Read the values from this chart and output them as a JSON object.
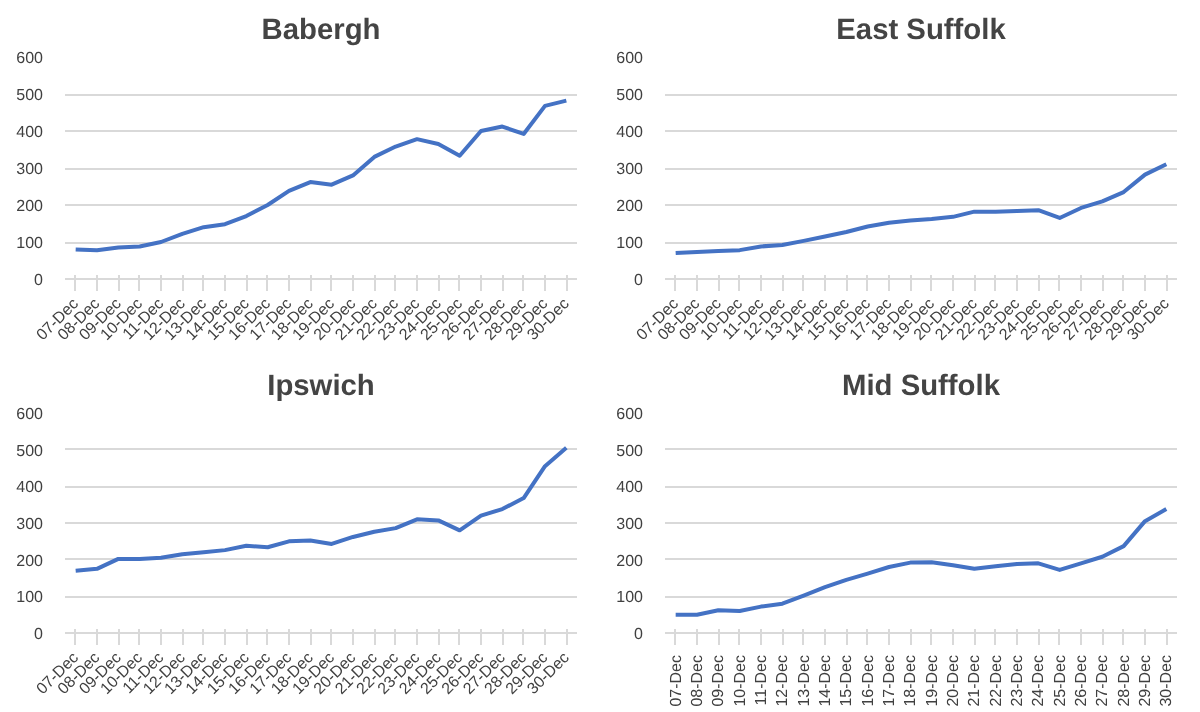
{
  "chart_data": [
    {
      "type": "line",
      "title": "Babergh",
      "categories": [
        "07-Dec",
        "08-Dec",
        "09-Dec",
        "10-Dec",
        "11-Dec",
        "12-Dec",
        "13-Dec",
        "14-Dec",
        "15-Dec",
        "16-Dec",
        "17-Dec",
        "18-Dec",
        "19-Dec",
        "20-Dec",
        "21-Dec",
        "22-Dec",
        "23-Dec",
        "24-Dec",
        "25-Dec",
        "26-Dec",
        "27-Dec",
        "28-Dec",
        "29-Dec",
        "30-Dec"
      ],
      "series": [
        {
          "color": "#4472c4",
          "values": [
            80,
            78,
            85,
            88,
            100,
            122,
            140,
            148,
            170,
            200,
            238,
            262,
            255,
            280,
            330,
            358,
            378,
            365,
            333,
            400,
            412,
            392,
            468,
            482
          ]
        }
      ],
      "ylim": [
        0,
        600
      ],
      "yticks": [
        0,
        100,
        200,
        300,
        400,
        500,
        600
      ],
      "grid": "y",
      "marker": "none",
      "line_style": "solid"
    },
    {
      "type": "line",
      "title": "East Suffolk",
      "categories": [
        "07-Dec",
        "08-Dec",
        "09-Dec",
        "10-Dec",
        "11-Dec",
        "12-Dec",
        "13-Dec",
        "14-Dec",
        "15-Dec",
        "16-Dec",
        "17-Dec",
        "18-Dec",
        "19-Dec",
        "20-Dec",
        "21-Dec",
        "22-Dec",
        "23-Dec",
        "24-Dec",
        "25-Dec",
        "26-Dec",
        "27-Dec",
        "28-Dec",
        "29-Dec",
        "30-Dec"
      ],
      "series": [
        {
          "color": "#4472c4",
          "values": [
            70,
            73,
            76,
            78,
            88,
            92,
            103,
            115,
            127,
            142,
            152,
            158,
            162,
            168,
            182,
            182,
            184,
            186,
            165,
            192,
            210,
            235,
            282,
            310
          ]
        }
      ],
      "ylim": [
        0,
        600
      ],
      "yticks": [
        0,
        100,
        200,
        300,
        400,
        500,
        600
      ],
      "grid": "y",
      "marker": "none",
      "line_style": "solid"
    },
    {
      "type": "line",
      "title": "Ipswich",
      "categories": [
        "07-Dec",
        "08-Dec",
        "09-Dec",
        "10-Dec",
        "11-Dec",
        "12-Dec",
        "13-Dec",
        "14-Dec",
        "15-Dec",
        "16-Dec",
        "17-Dec",
        "18-Dec",
        "19-Dec",
        "20-Dec",
        "21-Dec",
        "22-Dec",
        "23-Dec",
        "24-Dec",
        "25-Dec",
        "26-Dec",
        "27-Dec",
        "28-Dec",
        "29-Dec",
        "30-Dec"
      ],
      "series": [
        {
          "color": "#4472c4",
          "values": [
            170,
            175,
            202,
            202,
            205,
            215,
            220,
            226,
            238,
            234,
            250,
            252,
            243,
            262,
            276,
            286,
            310,
            307,
            280,
            320,
            338,
            368,
            455,
            505
          ]
        }
      ],
      "ylim": [
        0,
        600
      ],
      "yticks": [
        0,
        100,
        200,
        300,
        400,
        500,
        600
      ],
      "grid": "y",
      "marker": "none",
      "line_style": "solid"
    },
    {
      "type": "line",
      "title": "Mid Suffolk",
      "categories": [
        "07-Dec",
        "08-Dec",
        "09-Dec",
        "10-Dec",
        "11-Dec",
        "12-Dec",
        "13-Dec",
        "14-Dec",
        "15-Dec",
        "16-Dec",
        "17-Dec",
        "18-Dec",
        "19-Dec",
        "20-Dec",
        "21-Dec",
        "22-Dec",
        "23-Dec",
        "24-Dec",
        "25-Dec",
        "26-Dec",
        "27-Dec",
        "28-Dec",
        "29-Dec",
        "30-Dec"
      ],
      "series": [
        {
          "color": "#4472c4",
          "values": [
            50,
            50,
            62,
            60,
            72,
            80,
            102,
            125,
            145,
            162,
            180,
            192,
            193,
            185,
            175,
            182,
            188,
            190,
            172,
            190,
            208,
            237,
            305,
            338
          ]
        }
      ],
      "ylim": [
        0,
        600
      ],
      "yticks": [
        0,
        100,
        200,
        300,
        400,
        500,
        600
      ],
      "grid": "y",
      "marker": "none",
      "line_style": "solid"
    }
  ]
}
